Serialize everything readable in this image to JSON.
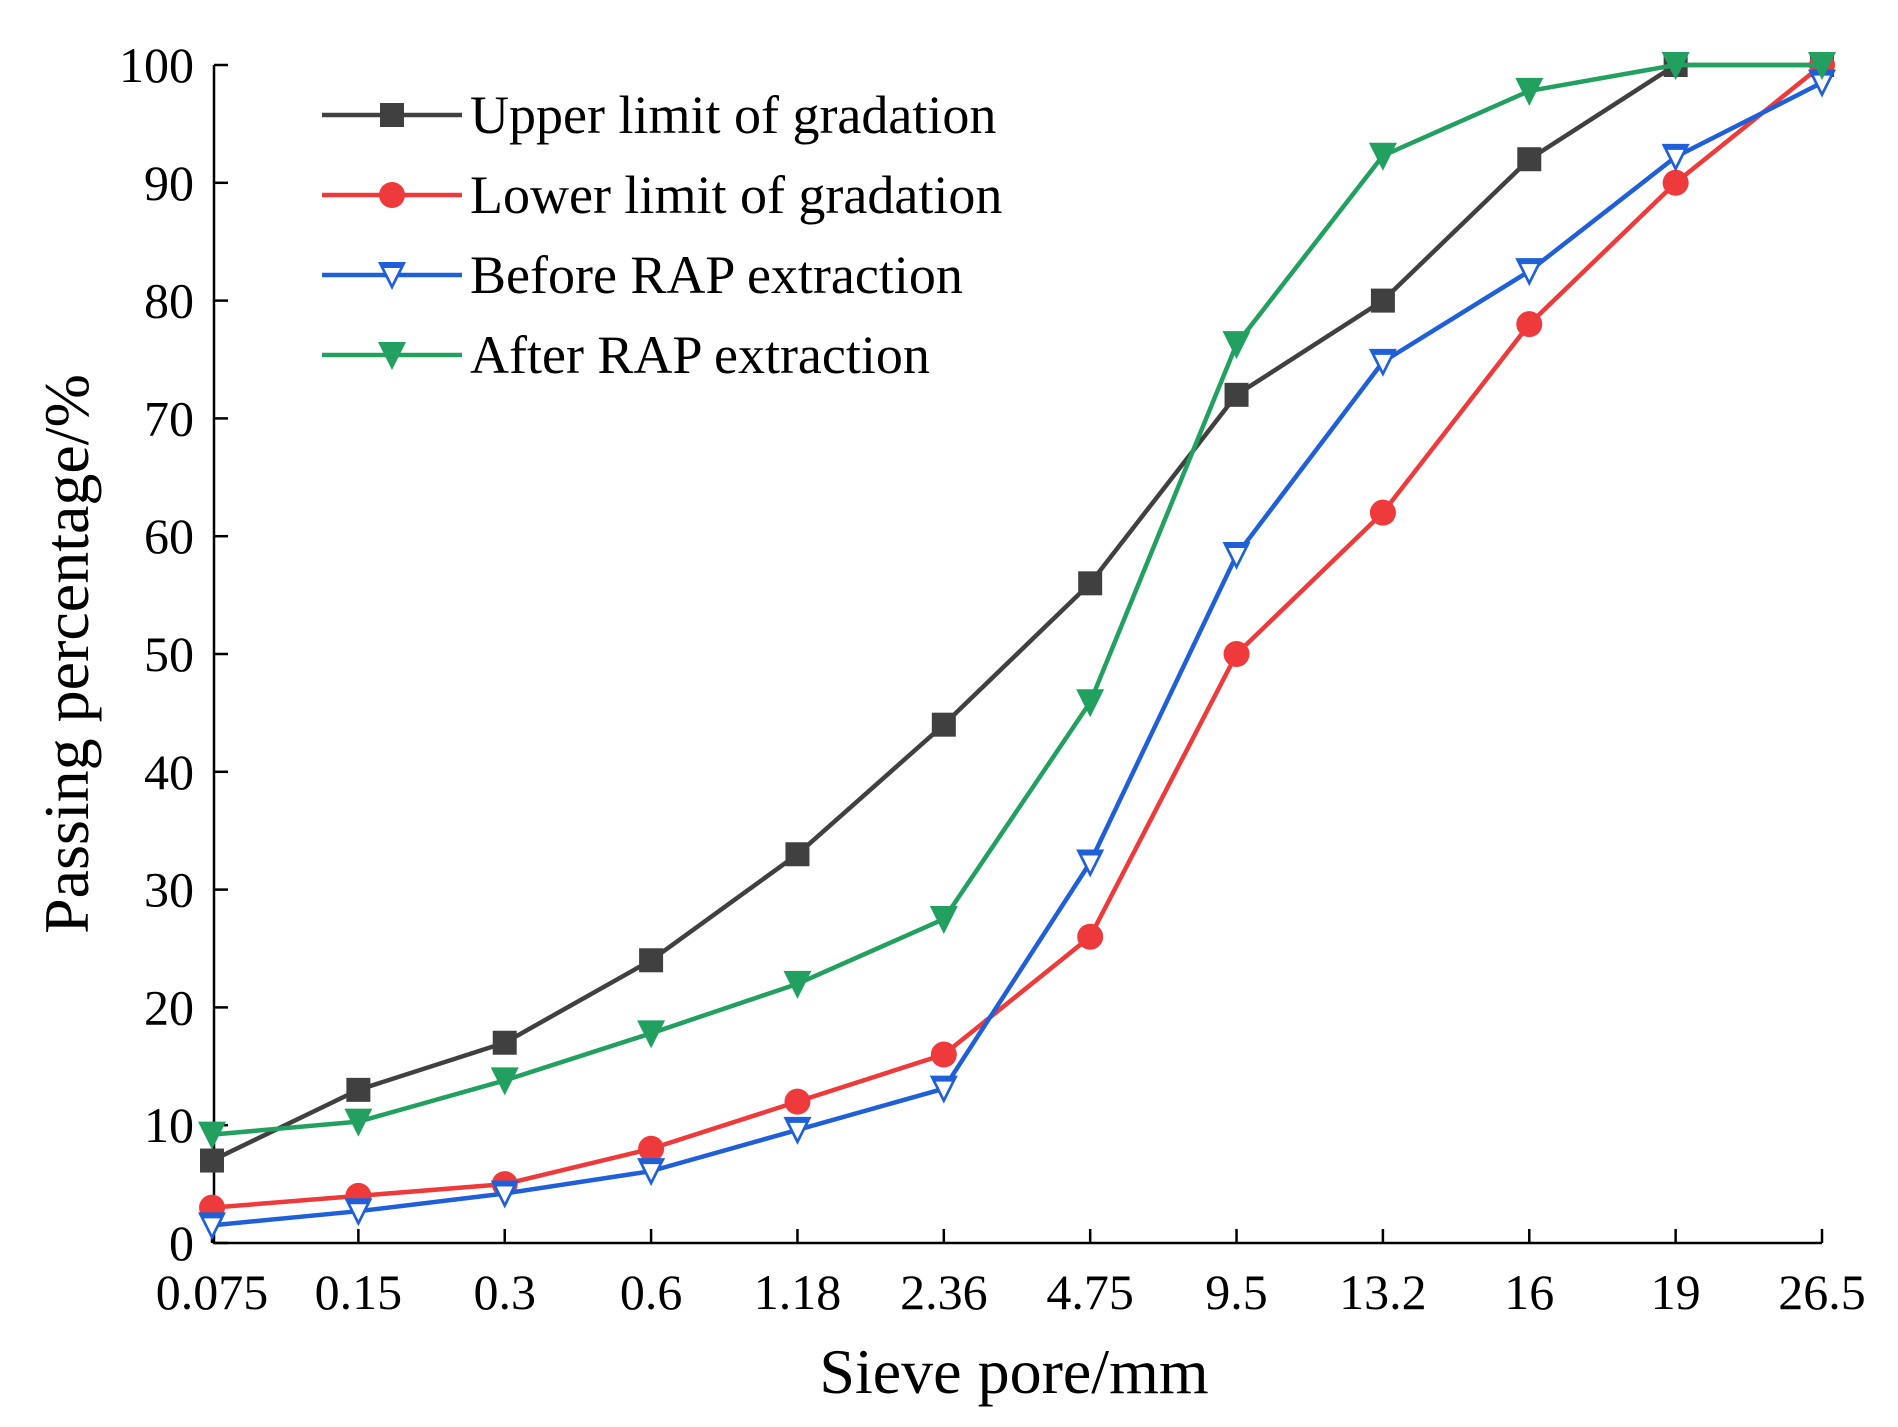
{
  "chart_data": {
    "type": "line",
    "title": "",
    "xlabel": "Sieve pore/mm",
    "ylabel": "Passing percentage/%",
    "categories": [
      "0.075",
      "0.15",
      "0.3",
      "0.6",
      "1.18",
      "2.36",
      "4.75",
      "9.5",
      "13.2",
      "16",
      "19",
      "26.5"
    ],
    "ylim": [
      0,
      100
    ],
    "yticks": [
      0,
      10,
      20,
      30,
      40,
      50,
      60,
      70,
      80,
      90,
      100
    ],
    "legend_position": "top-left",
    "series": [
      {
        "name": "Upper limit of gradation",
        "color": "#404040",
        "marker": "square",
        "values": [
          7,
          13,
          17,
          24,
          33,
          44,
          56,
          72,
          80,
          92,
          100,
          100
        ]
      },
      {
        "name": "Lower limit of gradation",
        "color": "#ee3a3a",
        "marker": "circle",
        "values": [
          3,
          4,
          5,
          8,
          12,
          16,
          26,
          50,
          62,
          78,
          90,
          100
        ]
      },
      {
        "name": "Before RAP extraction",
        "color": "#1f5fd8",
        "marker": "triangle-down-open",
        "values": [
          1.5,
          2.7,
          4.2,
          6.1,
          9.6,
          13.1,
          32.3,
          58.4,
          74.8,
          82.5,
          92.2,
          98.5
        ]
      },
      {
        "name": "After RAP extraction",
        "color": "#22a060",
        "marker": "triangle-down",
        "values": [
          9.2,
          10.3,
          13.8,
          17.8,
          22,
          27.5,
          45.9,
          76.3,
          92.3,
          97.8,
          100,
          100
        ]
      }
    ]
  }
}
